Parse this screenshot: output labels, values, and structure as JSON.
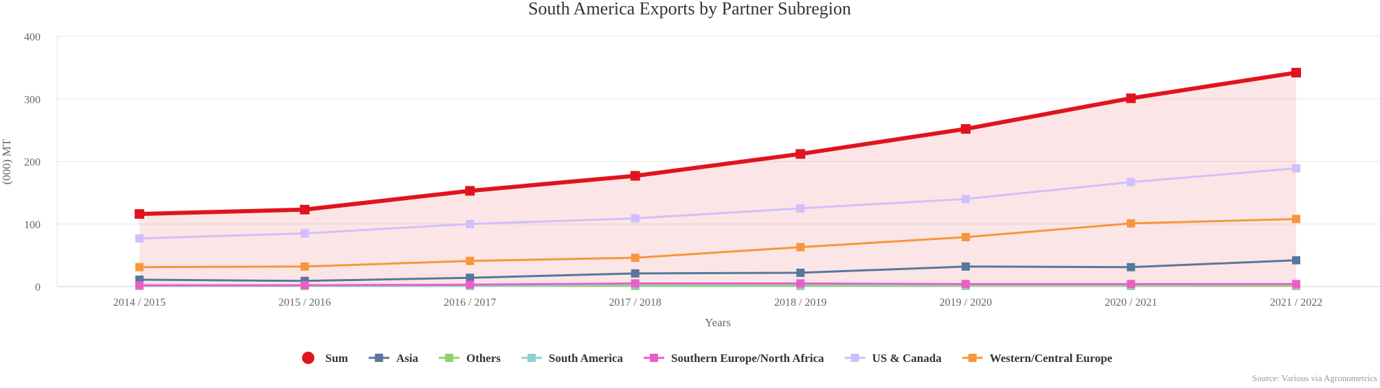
{
  "chart_data": {
    "type": "line",
    "title": "South America Exports by Partner Subregion",
    "xlabel": "Years",
    "ylabel": "(000) MT",
    "ylim": [
      0,
      400
    ],
    "yticks": [
      0,
      100,
      200,
      300,
      400
    ],
    "grid": true,
    "legend_position": "bottom",
    "source": "Source: Various via Agronometrics",
    "categories": [
      "2014 / 2015",
      "2015 / 2016",
      "2016 / 2017",
      "2017 / 2018",
      "2018 / 2019",
      "2019 / 2020",
      "2020 / 2021",
      "2021 / 2022"
    ],
    "series": [
      {
        "name": "Sum",
        "color": "#e0141e",
        "type": "area",
        "values": [
          116,
          123,
          153,
          177,
          212,
          252,
          301,
          342
        ]
      },
      {
        "name": "Asia",
        "color": "#56779e",
        "values": [
          11,
          9,
          14,
          21,
          22,
          32,
          31,
          42
        ]
      },
      {
        "name": "Others",
        "color": "#8fd16a",
        "values": [
          1,
          1,
          1,
          1,
          1,
          1,
          1,
          1
        ]
      },
      {
        "name": "South America",
        "color": "#92cfd3",
        "values": [
          1,
          1,
          1,
          3,
          3,
          2,
          2,
          3
        ]
      },
      {
        "name": "Southern Europe/North Africa",
        "color": "#ea5fc3",
        "values": [
          2,
          2,
          3,
          5,
          5,
          4,
          4,
          4
        ]
      },
      {
        "name": "US & Canada",
        "color": "#cfc0fb",
        "values": [
          77,
          85,
          100,
          109,
          125,
          140,
          167,
          189
        ]
      },
      {
        "name": "Western/Central Europe",
        "color": "#f7963b",
        "values": [
          31,
          32,
          41,
          46,
          63,
          79,
          101,
          108
        ]
      }
    ]
  }
}
